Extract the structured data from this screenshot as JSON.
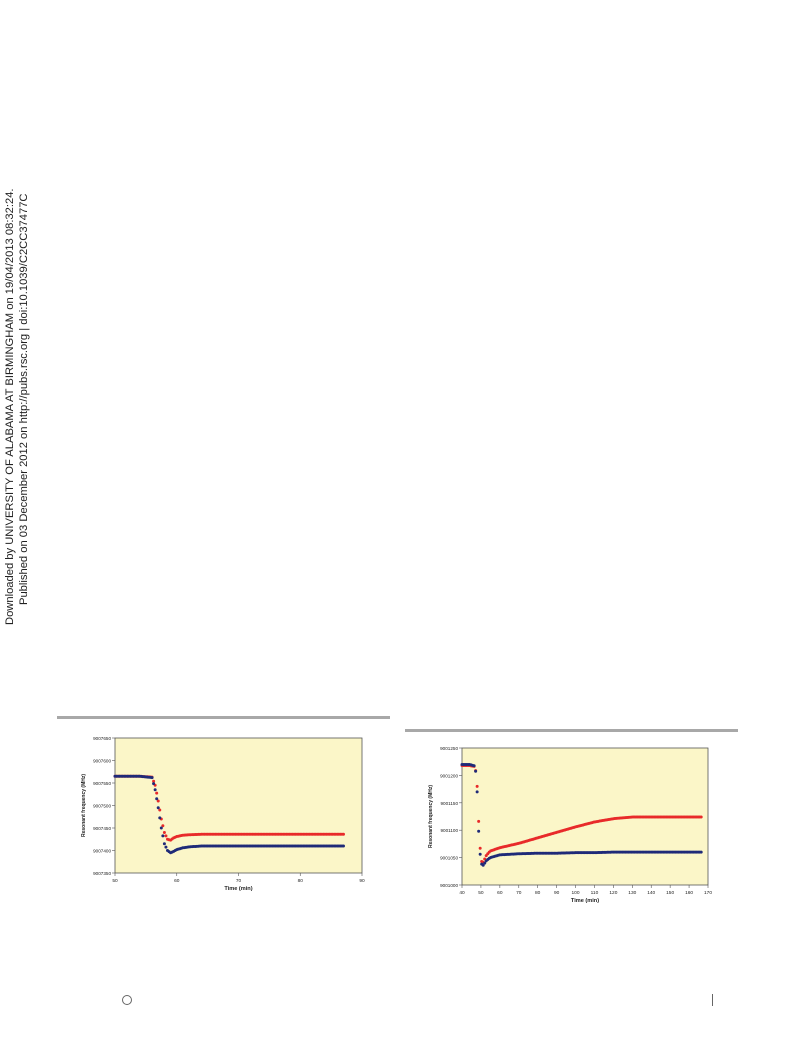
{
  "side_notice": {
    "line1": "Downloaded by UNIVERSITY OF ALABAMA AT BIRMINGHAM on 19/04/2013 08:32:24.",
    "line2": "Published on 03 December 2012 on http://pubs.rsc.org | doi:10.1039/C2CC37477C"
  },
  "colors": {
    "plot_bg": "#fbf6c8",
    "series_red": "#e82a2a",
    "series_blue": "#1f2a78",
    "rule": "#a8a8a8"
  },
  "chart_data": [
    {
      "type": "scatter",
      "title": "",
      "xlabel": "Time (min)",
      "ylabel": "Resonant frequency (MHz)",
      "xlim": [
        50,
        90
      ],
      "ylim": [
        9007350,
        9007650
      ],
      "x_ticks": [
        "50",
        "60",
        "70",
        "80",
        "90"
      ],
      "y_ticks": [
        "9007350",
        "9007400",
        "9007450",
        "9007500",
        "9007550",
        "9007600",
        "9007650"
      ],
      "grid": false,
      "legend": "none",
      "series": [
        {
          "color": "#e82a2a",
          "points": [
            [
              50,
              9007565
            ],
            [
              52,
              9007565
            ],
            [
              54,
              9007565
            ],
            [
              56,
              9007563
            ],
            [
              56.5,
              9007545
            ],
            [
              57,
              9007510
            ],
            [
              57.5,
              9007470
            ],
            [
              58,
              9007440
            ],
            [
              58.5,
              9007425
            ],
            [
              59,
              9007423
            ],
            [
              59.5,
              9007428
            ],
            [
              60,
              9007431
            ],
            [
              61,
              9007434
            ],
            [
              62,
              9007435
            ],
            [
              64,
              9007436
            ],
            [
              66,
              9007436
            ],
            [
              70,
              9007436
            ],
            [
              75,
              9007436
            ],
            [
              80,
              9007436
            ],
            [
              85,
              9007436
            ],
            [
              87,
              9007436
            ]
          ]
        },
        {
          "color": "#1f2a78",
          "points": [
            [
              50,
              9007565
            ],
            [
              52,
              9007565
            ],
            [
              54,
              9007565
            ],
            [
              56,
              9007562
            ],
            [
              56.5,
              9007535
            ],
            [
              57,
              9007495
            ],
            [
              57.5,
              9007450
            ],
            [
              58,
              9007415
            ],
            [
              58.5,
              9007400
            ],
            [
              59,
              9007395
            ],
            [
              59.5,
              9007398
            ],
            [
              60,
              9007402
            ],
            [
              61,
              9007406
            ],
            [
              62,
              9007408
            ],
            [
              64,
              9007410
            ],
            [
              66,
              9007410
            ],
            [
              70,
              9007410
            ],
            [
              75,
              9007410
            ],
            [
              80,
              9007410
            ],
            [
              85,
              9007410
            ],
            [
              87,
              9007410
            ]
          ]
        }
      ]
    },
    {
      "type": "scatter",
      "title": "",
      "xlabel": "Time (min)",
      "ylabel": "Resonant frequency (MHz)",
      "xlim": [
        40,
        170
      ],
      "ylim": [
        9001000,
        9001250
      ],
      "x_ticks": [
        "40",
        "50",
        "60",
        "70",
        "80",
        "90",
        "100",
        "110",
        "120",
        "130",
        "140",
        "150",
        "160",
        "170"
      ],
      "y_ticks": [
        "9001000",
        "9001050",
        "9001100",
        "9001150",
        "9001200",
        "9001250"
      ],
      "grid": false,
      "legend": "none",
      "series": [
        {
          "color": "#e82a2a",
          "points": [
            [
              40,
              9001218
            ],
            [
              44,
              9001218
            ],
            [
              47,
              9001216
            ],
            [
              48,
              9001180
            ],
            [
              49,
              9001100
            ],
            [
              50,
              9001045
            ],
            [
              51,
              9001040
            ],
            [
              53,
              9001055
            ],
            [
              55,
              9001062
            ],
            [
              60,
              9001068
            ],
            [
              70,
              9001076
            ],
            [
              80,
              9001086
            ],
            [
              90,
              9001096
            ],
            [
              100,
              9001106
            ],
            [
              110,
              9001115
            ],
            [
              120,
              9001121
            ],
            [
              130,
              9001124
            ],
            [
              140,
              9001124
            ],
            [
              150,
              9001124
            ],
            [
              160,
              9001124
            ],
            [
              167,
              9001124
            ]
          ]
        },
        {
          "color": "#1f2a78",
          "points": [
            [
              40,
              9001220
            ],
            [
              44,
              9001220
            ],
            [
              47,
              9001217
            ],
            [
              48,
              9001170
            ],
            [
              49,
              9001080
            ],
            [
              50,
              9001040
            ],
            [
              51,
              9001035
            ],
            [
              53,
              9001045
            ],
            [
              55,
              9001050
            ],
            [
              60,
              9001055
            ],
            [
              70,
              9001057
            ],
            [
              80,
              9001058
            ],
            [
              90,
              9001058
            ],
            [
              100,
              9001059
            ],
            [
              110,
              9001059
            ],
            [
              120,
              9001060
            ],
            [
              130,
              9001060
            ],
            [
              140,
              9001060
            ],
            [
              150,
              9001060
            ],
            [
              160,
              9001060
            ],
            [
              167,
              9001060
            ]
          ]
        }
      ]
    }
  ]
}
